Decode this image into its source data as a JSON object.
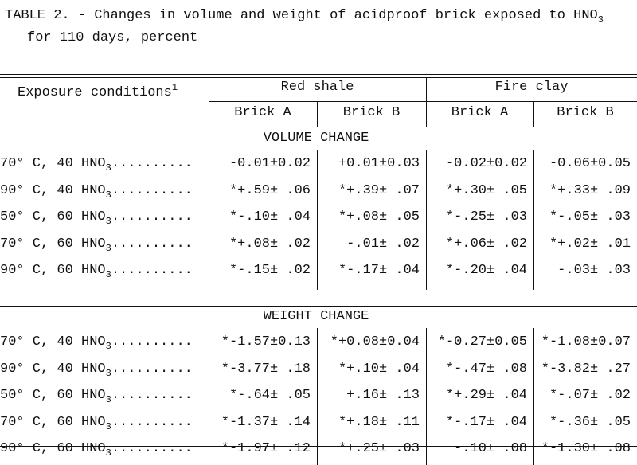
{
  "title": {
    "text": "TABLE 2. - Changes in volume and weight of acidproof brick exposed to HNO",
    "sub": "3",
    "text2": "for 110 days, percent"
  },
  "table": {
    "header": {
      "label": "Exposure conditions",
      "label_sup": "1",
      "groups": [
        "Red shale",
        "Fire clay"
      ],
      "columns": [
        "Brick A",
        "Brick B",
        "Brick A",
        "Brick B"
      ]
    },
    "sections": [
      {
        "title": "VOLUME CHANGE",
        "rows": [
          {
            "label": "70° C, 40 HNO",
            "sub": "3",
            "leader": "..........",
            "values": [
              "-0.01±0.02",
              "+0.01±0.03",
              "-0.02±0.02",
              "-0.06±0.05"
            ]
          },
          {
            "label": "90° C, 40 HNO",
            "sub": "3",
            "leader": "..........",
            "values": [
              "*+.59± .06",
              "*+.39± .07",
              "*+.30± .05",
              "*+.33± .09"
            ]
          },
          {
            "label": "50° C, 60 HNO",
            "sub": "3",
            "leader": "..........",
            "values": [
              "*-.10± .04",
              "*+.08± .05",
              "*-.25± .03",
              "*-.05± .03"
            ]
          },
          {
            "label": "70° C, 60 HNO",
            "sub": "3",
            "leader": "..........",
            "values": [
              "*+.08± .02",
              "-.01± .02",
              "*+.06± .02",
              "*+.02± .01"
            ]
          },
          {
            "label": "90° C, 60 HNO",
            "sub": "3",
            "leader": "..........",
            "values": [
              "*-.15± .02",
              "*-.17± .04",
              "*-.20± .04",
              "-.03± .03"
            ]
          }
        ]
      },
      {
        "title": "WEIGHT CHANGE",
        "rows": [
          {
            "label": "70° C, 40 HNO",
            "sub": "3",
            "leader": "..........",
            "values": [
              "*-1.57±0.13",
              "*+0.08±0.04",
              "*-0.27±0.05",
              "*-1.08±0.07"
            ]
          },
          {
            "label": "90° C, 40 HNO",
            "sub": "3",
            "leader": "..........",
            "values": [
              "*-3.77± .18",
              "*+.10± .04",
              "*-.47± .08",
              "*-3.82± .27"
            ]
          },
          {
            "label": "50° C, 60 HNO",
            "sub": "3",
            "leader": "..........",
            "values": [
              "*-.64± .05",
              "+.16± .13",
              "*+.29± .04",
              "*-.07± .02"
            ]
          },
          {
            "label": "70° C, 60 HNO",
            "sub": "3",
            "leader": "..........",
            "values": [
              "*-1.37± .14",
              "*+.18± .11",
              "*-.17± .04",
              "*-.36± .05"
            ]
          },
          {
            "label": "90° C, 60 HNO",
            "sub": "3",
            "leader": "..........",
            "values": [
              "*-1.97± .12",
              "*+.25± .03",
              "-.10± .08",
              "*-1.30± .08"
            ]
          }
        ]
      }
    ]
  }
}
